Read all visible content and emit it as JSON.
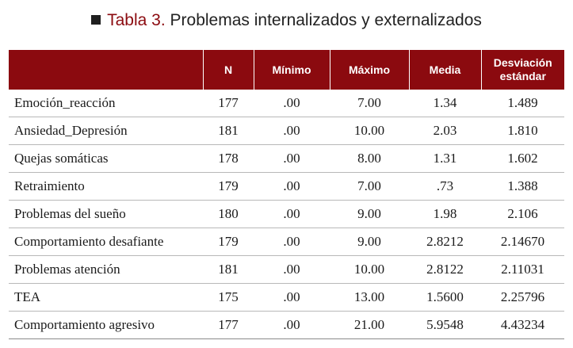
{
  "title": {
    "label": "Tabla 3.",
    "text": "Problemas internalizados y externalizados"
  },
  "table": {
    "headers": [
      "",
      "N",
      "Mínimo",
      "Máximo",
      "Media",
      "Desviación estándar"
    ],
    "rows": [
      [
        "Emoción_reacción",
        "177",
        ".00",
        "7.00",
        "1.34",
        "1.489"
      ],
      [
        "Ansiedad_Depresión",
        "181",
        ".00",
        "10.00",
        "2.03",
        "1.810"
      ],
      [
        "Quejas somáticas",
        "178",
        ".00",
        "8.00",
        "1.31",
        "1.602"
      ],
      [
        "Retraimiento",
        "179",
        ".00",
        "7.00",
        ".73",
        "1.388"
      ],
      [
        "Problemas del sueño",
        "180",
        ".00",
        "9.00",
        "1.98",
        "2.106"
      ],
      [
        "Comportamiento desafiante",
        "179",
        ".00",
        "9.00",
        "2.8212",
        "2.14670"
      ],
      [
        "Problemas atención",
        "181",
        ".00",
        "10.00",
        "2.8122",
        "2.11031"
      ],
      [
        "TEA",
        "175",
        ".00",
        "13.00",
        "1.5600",
        "2.25796"
      ],
      [
        "Comportamiento agresivo",
        "177",
        ".00",
        "21.00",
        "5.9548",
        "4.43234"
      ]
    ]
  },
  "colors": {
    "header_background": "#8b0a0f",
    "title_label": "#8b0a0f"
  },
  "icons": {
    "title_bullet": "square-bullet-icon"
  }
}
